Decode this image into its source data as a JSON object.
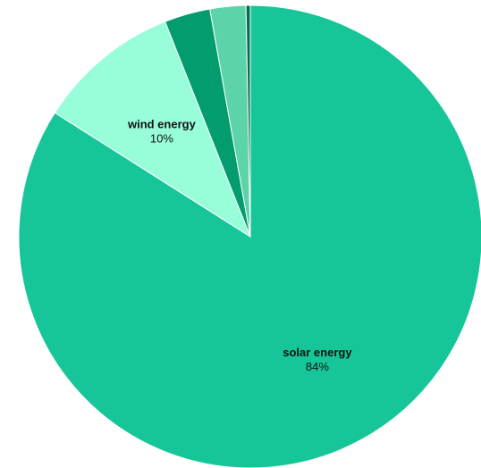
{
  "chart_data": {
    "type": "pie",
    "title": "",
    "legend": "none",
    "slices": [
      {
        "label": "solar energy",
        "value": 84,
        "value_label": "84%",
        "color": "#17c698",
        "show_label": true
      },
      {
        "label": "wind energy",
        "value": 10,
        "value_label": "10%",
        "color": "#98fdd9",
        "show_label": true
      },
      {
        "label": "",
        "value": 3.2,
        "value_label": "",
        "color": "#039c6e",
        "show_label": false
      },
      {
        "label": "",
        "value": 2.5,
        "value_label": "",
        "color": "#5cd3a8",
        "show_label": false
      },
      {
        "label": "",
        "value": 0.3,
        "value_label": "",
        "color": "#016f4e",
        "show_label": false
      }
    ],
    "start_angle_deg": 0,
    "direction": "clockwise"
  }
}
